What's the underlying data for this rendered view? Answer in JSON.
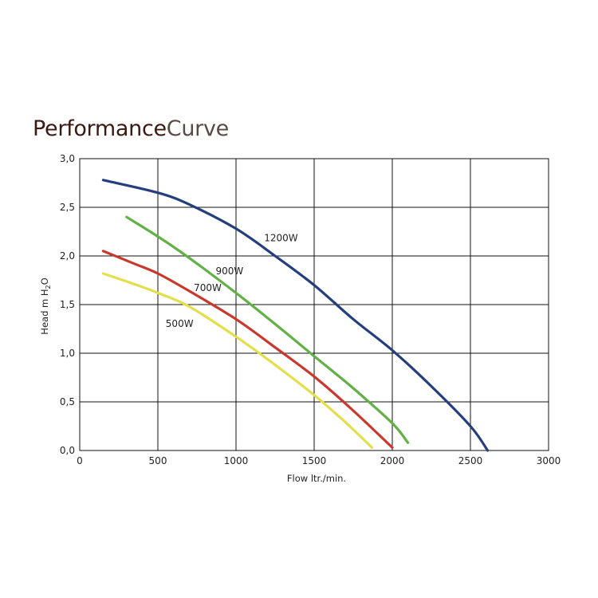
{
  "title": {
    "main": "Performance",
    "sub": "Curve"
  },
  "chart_data": {
    "type": "line",
    "xlabel": "Flow ltr./min.",
    "ylabel": "Head m H",
    "ylabel_sub": "2",
    "ylabel_end": "O",
    "xlim": [
      0,
      3000
    ],
    "ylim": [
      0,
      3
    ],
    "x_ticks": [
      "0",
      "500",
      "1000",
      "1500",
      "2000",
      "2500",
      "3000"
    ],
    "x_tick_values": [
      0,
      500,
      1000,
      1500,
      2000,
      2500,
      3000
    ],
    "y_ticks": [
      "0,0",
      "0,5",
      "1,0",
      "1,5",
      "2,0",
      "2,5",
      "3,0"
    ],
    "y_tick_values": [
      0,
      0.5,
      1.0,
      1.5,
      2.0,
      2.5,
      3.0
    ],
    "grid": true,
    "series": [
      {
        "name": "1200W",
        "color": "#253f7e",
        "points": [
          [
            150,
            2.78
          ],
          [
            500,
            2.65
          ],
          [
            700,
            2.53
          ],
          [
            1000,
            2.28
          ],
          [
            1250,
            2.0
          ],
          [
            1500,
            1.7
          ],
          [
            1750,
            1.35
          ],
          [
            2000,
            1.03
          ],
          [
            2250,
            0.66
          ],
          [
            2500,
            0.25
          ],
          [
            2610,
            0.0
          ]
        ],
        "label_at": [
          1180,
          2.15
        ]
      },
      {
        "name": "900W",
        "color": "#62b146",
        "points": [
          [
            300,
            2.4
          ],
          [
            500,
            2.2
          ],
          [
            700,
            1.98
          ],
          [
            1000,
            1.62
          ],
          [
            1250,
            1.3
          ],
          [
            1500,
            0.97
          ],
          [
            1750,
            0.64
          ],
          [
            2000,
            0.28
          ],
          [
            2100,
            0.08
          ]
        ],
        "label_at": [
          870,
          1.81
        ]
      },
      {
        "name": "700W",
        "color": "#c9382c",
        "points": [
          [
            150,
            2.05
          ],
          [
            350,
            1.92
          ],
          [
            500,
            1.82
          ],
          [
            700,
            1.64
          ],
          [
            1000,
            1.35
          ],
          [
            1250,
            1.06
          ],
          [
            1500,
            0.76
          ],
          [
            1750,
            0.41
          ],
          [
            2000,
            0.03
          ]
        ],
        "label_at": [
          730,
          1.64
        ]
      },
      {
        "name": "500W",
        "color": "#e3df4c",
        "points": [
          [
            150,
            1.82
          ],
          [
            350,
            1.71
          ],
          [
            500,
            1.62
          ],
          [
            700,
            1.48
          ],
          [
            1000,
            1.17
          ],
          [
            1250,
            0.88
          ],
          [
            1500,
            0.57
          ],
          [
            1700,
            0.29
          ],
          [
            1870,
            0.03
          ]
        ],
        "label_at": [
          550,
          1.27
        ]
      }
    ]
  }
}
